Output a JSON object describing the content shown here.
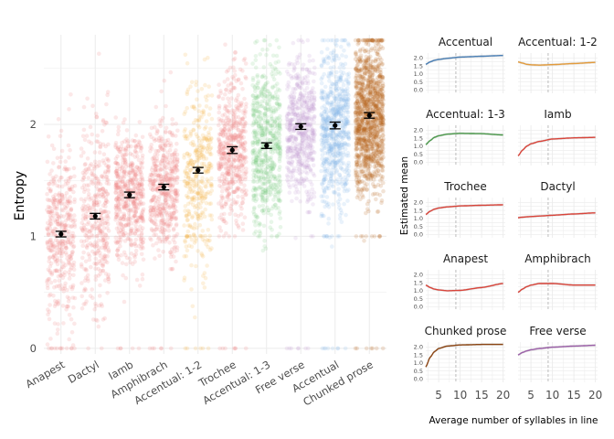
{
  "chart_data": [
    {
      "type": "scatter",
      "subtype": "jittered strip plot with mean and error bars",
      "ylabel": "Entropy",
      "xlabel": "",
      "ylim": [
        -0.05,
        2.8
      ],
      "yticks": [
        0,
        1,
        2
      ],
      "grid": true,
      "categories": [
        "Anapest",
        "Dactyl",
        "Iamb",
        "Amphibrach",
        "Accentual: 1-2",
        "Trochee",
        "Accentual: 1-3",
        "Free verse",
        "Accentual",
        "Chunked prose"
      ],
      "means": [
        1.02,
        1.18,
        1.37,
        1.44,
        1.59,
        1.77,
        1.81,
        1.98,
        1.99,
        2.08
      ],
      "error": [
        0.025,
        0.025,
        0.025,
        0.025,
        0.025,
        0.03,
        0.025,
        0.025,
        0.03,
        0.025
      ],
      "colors": [
        "#f08080",
        "#f08080",
        "#f08080",
        "#f08080",
        "#f5b041",
        "#f08080",
        "#7fcf85",
        "#c39bd3",
        "#85b8e8",
        "#b5651d"
      ],
      "spread": [
        [
          0.25,
          1.8
        ],
        [
          0.35,
          2.0
        ],
        [
          0.8,
          1.95
        ],
        [
          0.85,
          2.0
        ],
        [
          0.6,
          2.3
        ],
        [
          1.05,
          2.3
        ],
        [
          1.0,
          2.45
        ],
        [
          1.3,
          2.5
        ],
        [
          1.15,
          2.55
        ],
        [
          1.3,
          2.65
        ]
      ],
      "counts": [
        420,
        380,
        520,
        480,
        380,
        520,
        620,
        560,
        680,
        1200
      ]
    },
    {
      "type": "line",
      "subtype": "faceted smooth fits",
      "xlabel": "Average number of syllables in line",
      "ylabel": "Estimated mean",
      "xlim": [
        2,
        20.5
      ],
      "xticks": [
        5,
        10,
        15,
        20
      ],
      "ylim": [
        -0.2,
        2.3
      ],
      "yticks": [
        0.0,
        0.5,
        1.0,
        1.5,
        2.0
      ],
      "ytick_labels": [
        "0.0",
        "0.5",
        "1.0",
        "1.5",
        "2.0"
      ],
      "reference_line_x": 9,
      "facets": [
        {
          "title": "Accentual",
          "color": "#4a7fb5",
          "x": [
            2,
            3,
            4,
            5,
            7,
            10,
            15,
            20
          ],
          "y": [
            1.6,
            1.75,
            1.85,
            1.9,
            1.97,
            2.05,
            2.1,
            2.15
          ]
        },
        {
          "title": "Accentual: 1-2",
          "color": "#e39b3b",
          "x": [
            2,
            3,
            4,
            5,
            7,
            10,
            15,
            20
          ],
          "y": [
            1.75,
            1.68,
            1.6,
            1.57,
            1.55,
            1.58,
            1.65,
            1.72
          ]
        },
        {
          "title": "Accentual: 1-3",
          "color": "#4c9a4c",
          "x": [
            2,
            3,
            4,
            5,
            7,
            10,
            15,
            20
          ],
          "y": [
            1.1,
            1.35,
            1.55,
            1.65,
            1.75,
            1.8,
            1.78,
            1.7
          ]
        },
        {
          "title": "Iamb",
          "color": "#d9443a",
          "x": [
            2,
            3,
            4,
            5,
            7,
            10,
            15,
            20
          ],
          "y": [
            0.4,
            0.75,
            1.0,
            1.15,
            1.3,
            1.45,
            1.52,
            1.55
          ]
        },
        {
          "title": "Trochee",
          "color": "#d9443a",
          "x": [
            2,
            3,
            4,
            5,
            7,
            10,
            15,
            20
          ],
          "y": [
            1.25,
            1.45,
            1.58,
            1.65,
            1.72,
            1.78,
            1.82,
            1.85
          ]
        },
        {
          "title": "Dactyl",
          "color": "#d9443a",
          "x": [
            2,
            3,
            4,
            5,
            7,
            10,
            15,
            20
          ],
          "y": [
            1.05,
            1.08,
            1.1,
            1.12,
            1.15,
            1.2,
            1.28,
            1.35
          ]
        },
        {
          "title": "Anapest",
          "color": "#d9443a",
          "x": [
            2,
            3,
            4,
            5,
            7,
            10,
            15,
            20
          ],
          "y": [
            1.35,
            1.2,
            1.1,
            1.05,
            1.0,
            1.02,
            1.2,
            1.45
          ]
        },
        {
          "title": "Amphibrach",
          "color": "#d9443a",
          "x": [
            2,
            3,
            4,
            5,
            7,
            10,
            15,
            20
          ],
          "y": [
            0.9,
            1.1,
            1.25,
            1.35,
            1.45,
            1.45,
            1.35,
            1.35
          ]
        },
        {
          "title": "Chunked prose",
          "color": "#8b4513",
          "x": [
            2,
            3,
            4,
            5,
            7,
            10,
            15,
            20
          ],
          "y": [
            0.75,
            1.35,
            1.7,
            1.9,
            2.05,
            2.12,
            2.15,
            2.15
          ]
        },
        {
          "title": "Free verse",
          "color": "#9b5fa8",
          "x": [
            2,
            3,
            4,
            5,
            7,
            10,
            15,
            20
          ],
          "y": [
            1.5,
            1.65,
            1.75,
            1.82,
            1.9,
            1.98,
            2.05,
            2.1
          ]
        }
      ]
    }
  ],
  "colors": {
    "grid": "#ebebeb",
    "errorbar": "#000000",
    "refline": "#bdbdbd",
    "ribbon": "#999999"
  }
}
